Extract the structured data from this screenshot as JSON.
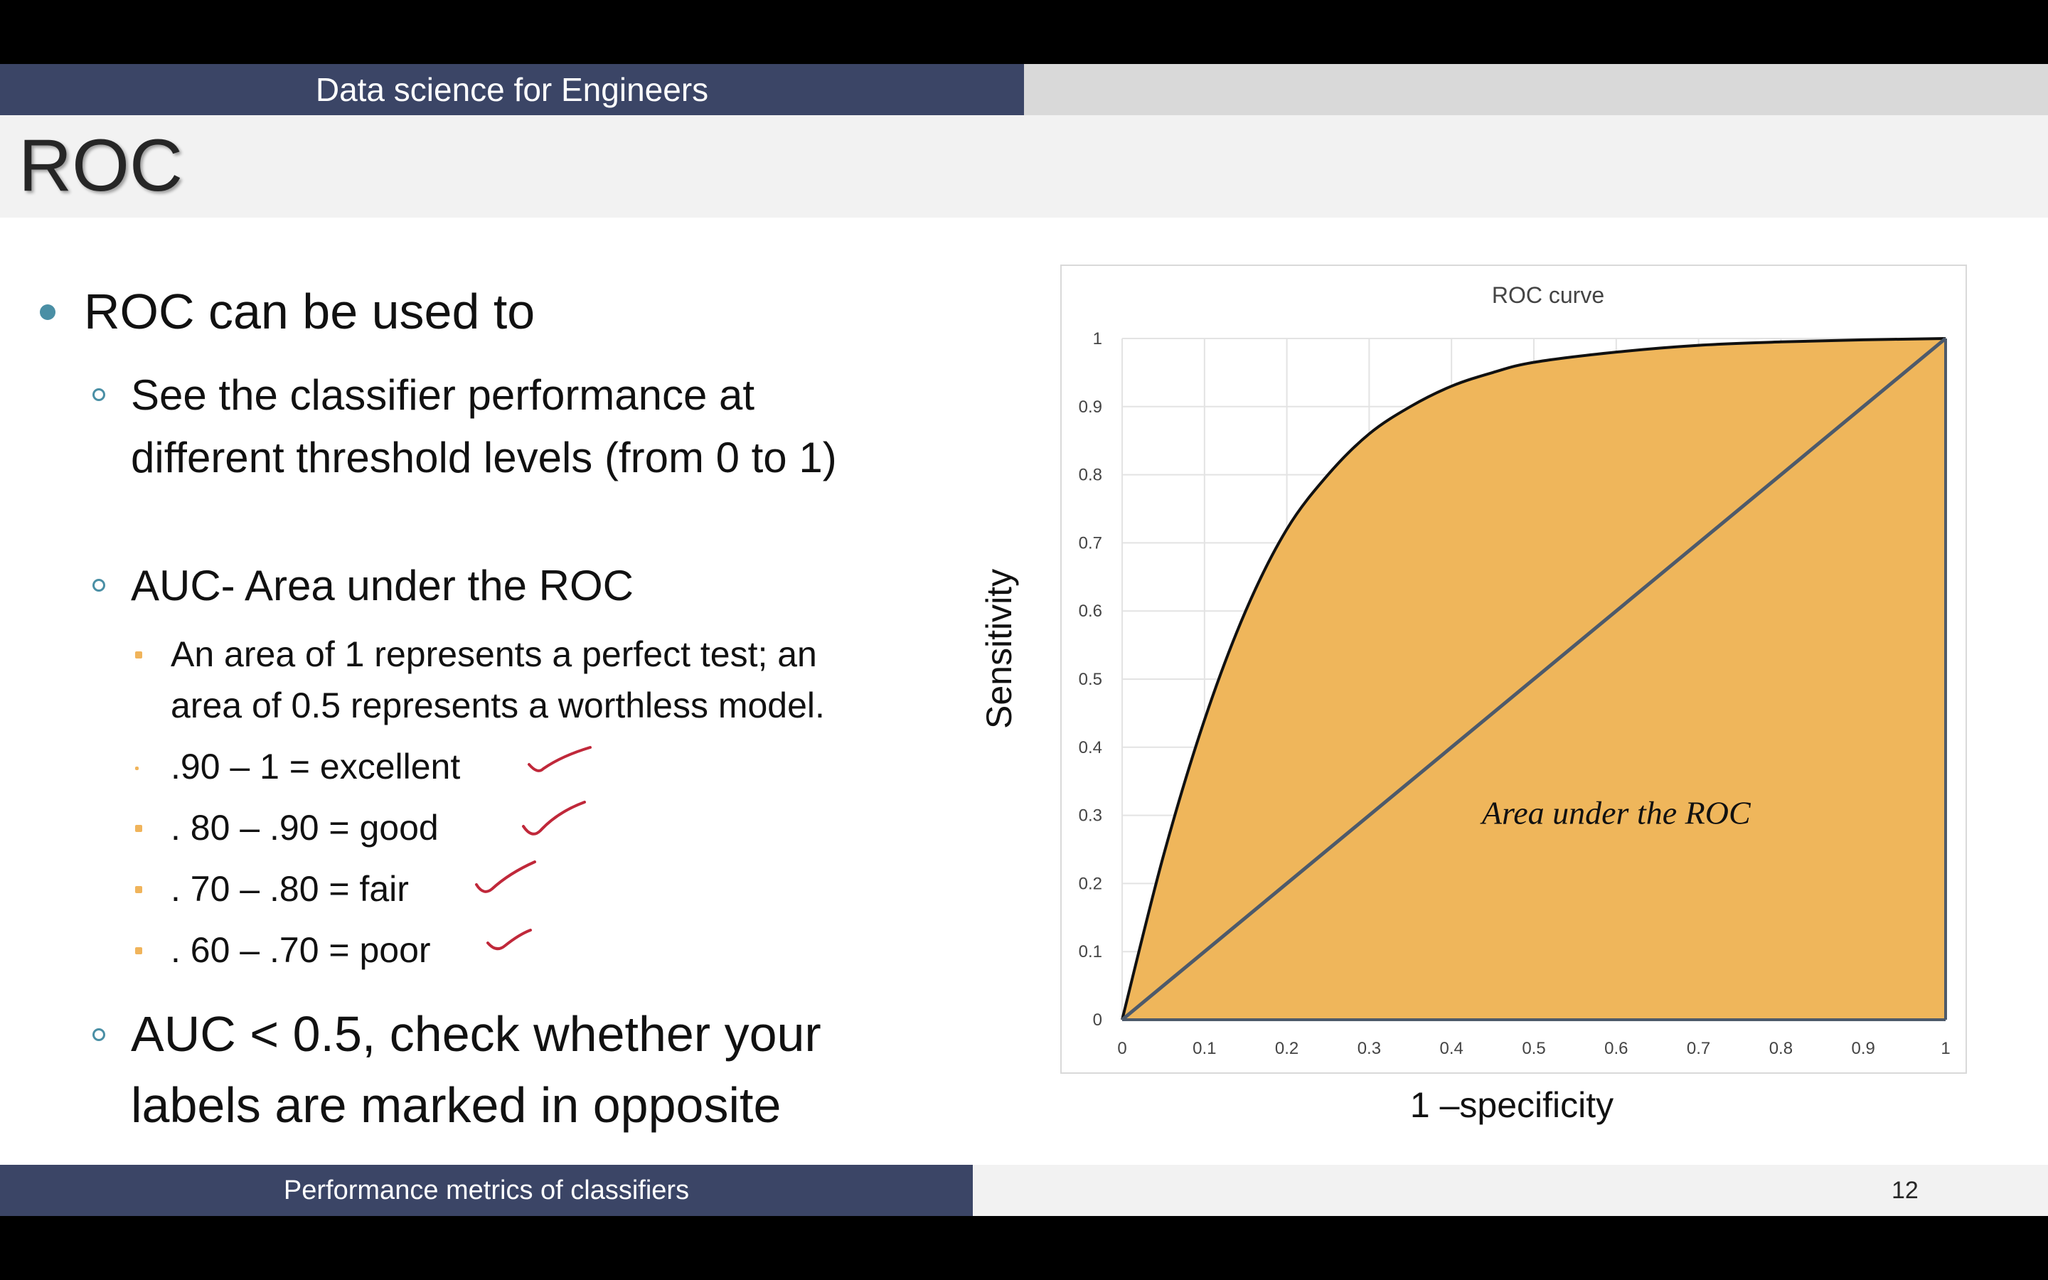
{
  "header": {
    "course": "Data science for Engineers"
  },
  "slide_title": "ROC",
  "bullets": {
    "main": "ROC can be used to",
    "sub1": "See the classifier performance at different threshold levels (from 0 to 1)",
    "sub2": "AUC- Area under the ROC",
    "sub2_items": [
      "An area of 1 represents a perfect test; an",
      "area of 0.5 represents a worthless model.",
      ".90 – 1 = excellent",
      ". 80 – .90 = good",
      ". 70 – .80 = fair",
      ". 60 – .70 = poor"
    ],
    "sub3_line1": "AUC < 0.5, check whether your",
    "sub3_line2": "labels are marked in opposite"
  },
  "chart_data": {
    "type": "area",
    "title": "ROC curve",
    "xlabel": "1 –specificity",
    "ylabel": "Sensitivity",
    "xlim": [
      0,
      1
    ],
    "ylim": [
      0,
      1
    ],
    "grid": true,
    "annotation": "Area under the ROC",
    "x_ticks": [
      "0",
      "0.1",
      "0.2",
      "0.3",
      "0.4",
      "0.5",
      "0.6",
      "0.7",
      "0.8",
      "0.9",
      "1"
    ],
    "y_ticks": [
      "0",
      "0.1",
      "0.2",
      "0.3",
      "0.4",
      "0.5",
      "0.6",
      "0.7",
      "0.8",
      "0.9",
      "1"
    ],
    "curve": {
      "x": [
        0,
        0.05,
        0.1,
        0.15,
        0.2,
        0.25,
        0.3,
        0.35,
        0.4,
        0.45,
        0.5,
        0.6,
        0.7,
        0.8,
        0.9,
        1.0
      ],
      "y": [
        0,
        0.24,
        0.44,
        0.6,
        0.72,
        0.8,
        0.86,
        0.9,
        0.93,
        0.95,
        0.965,
        0.98,
        0.99,
        0.995,
        0.998,
        1.0
      ]
    },
    "diagonal": {
      "x": [
        0,
        1
      ],
      "y": [
        0,
        1
      ]
    },
    "fill_color": "#efb65b",
    "curve_color": "#111111",
    "diagonal_color": "#4d5a6b"
  },
  "footer": {
    "topic": "Performance metrics of classifiers",
    "page": "12"
  }
}
